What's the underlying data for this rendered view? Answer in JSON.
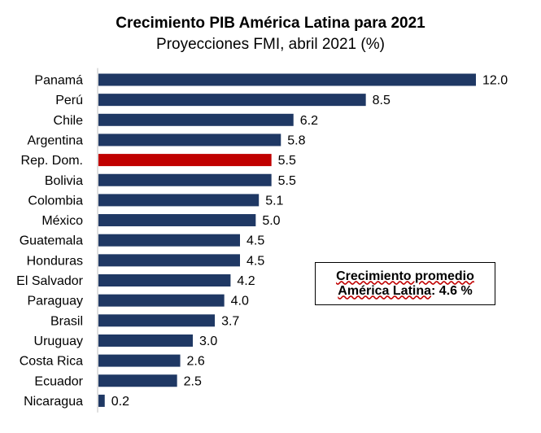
{
  "chart_data": {
    "type": "bar",
    "orientation": "horizontal",
    "title": "Crecimiento PIB América Latina para 2021",
    "subtitle": "Proyecciones FMI, abril 2021 (%)",
    "categories": [
      "Panamá",
      "Perú",
      "Chile",
      "Argentina",
      "Rep. Dom.",
      "Bolivia",
      "Colombia",
      "México",
      "Guatemala",
      "Honduras",
      "El Salvador",
      "Paraguay",
      "Brasil",
      "Uruguay",
      "Costa Rica",
      "Ecuador",
      "Nicaragua"
    ],
    "values": [
      12.0,
      8.5,
      6.2,
      5.8,
      5.5,
      5.5,
      5.1,
      5.0,
      4.5,
      4.5,
      4.2,
      4.0,
      3.7,
      3.0,
      2.6,
      2.5,
      0.2
    ],
    "value_labels": [
      "12.0",
      "8.5",
      "6.2",
      "5.8",
      "5.5",
      "5.5",
      "5.1",
      "5.0",
      "4.5",
      "4.5",
      "4.2",
      "4.0",
      "3.7",
      "3.0",
      "2.6",
      "2.5",
      "0.2"
    ],
    "highlight_category": "Rep. Dom.",
    "xlim": [
      0,
      12
    ],
    "grid": false,
    "colors": {
      "bar": "#1f3864",
      "highlight": "#c00000"
    }
  },
  "callout": {
    "line1": "Crecimiento promedio",
    "line2_a": "América Latina",
    "line2_b": ": 4.6 %"
  }
}
